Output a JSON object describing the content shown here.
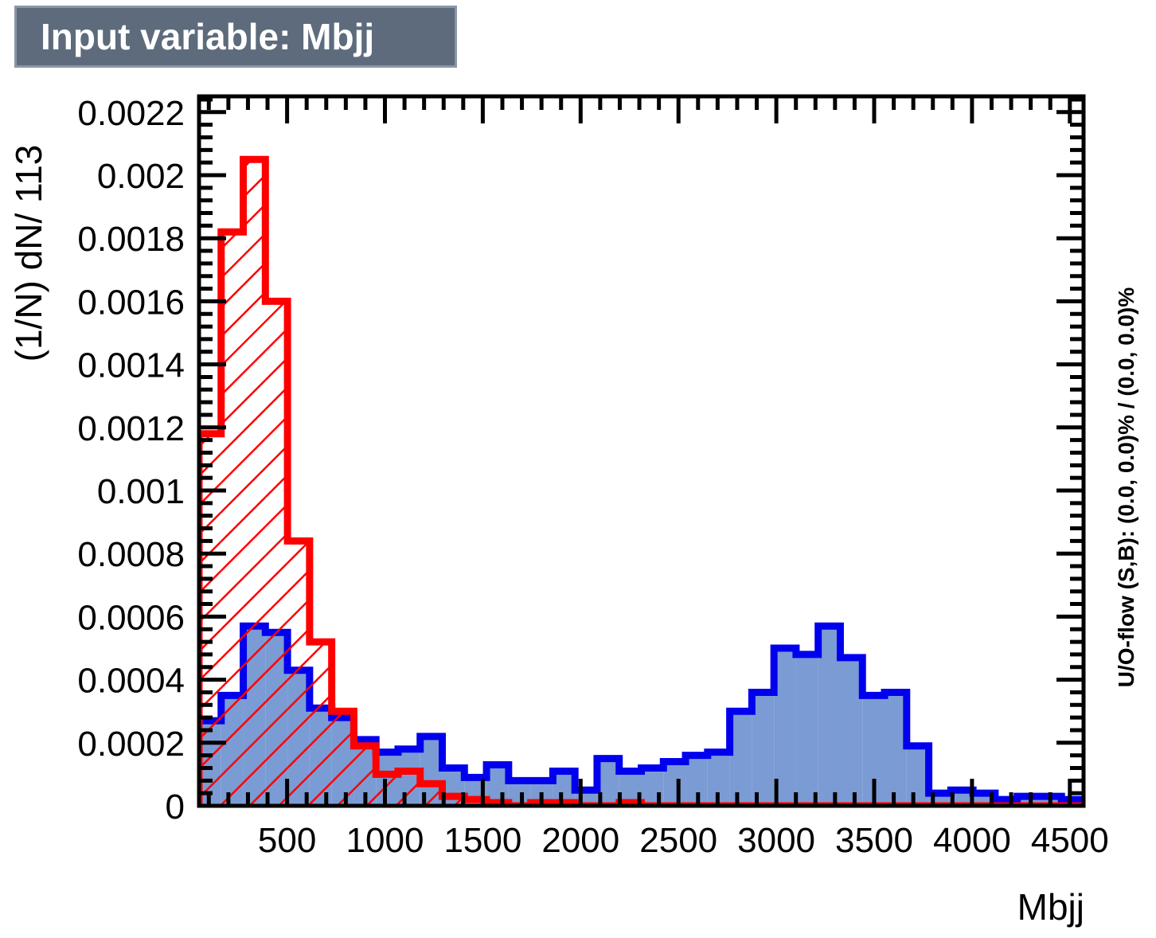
{
  "chart_data": {
    "type": "histogram",
    "title": "Input variable: Mbjj",
    "xlabel": "Mbjj",
    "ylabel": "(1/N) dN/ 113",
    "side_text": "U/O-flow (S,B): (0.0, 0.0)% / (0.0, 0.0)%",
    "xlim": [
      50,
      4570
    ],
    "ylim": [
      0,
      0.00225
    ],
    "bin_width": 113,
    "x_ticks": [
      500,
      1000,
      1500,
      2000,
      2500,
      3000,
      3500,
      4000,
      4500
    ],
    "y_ticks": [
      0,
      0.0002,
      0.0004,
      0.0006,
      0.0008,
      0.001,
      0.0012,
      0.0014,
      0.0016,
      0.0018,
      0.002,
      0.0022
    ],
    "y_tick_labels": [
      "0",
      "0.0002",
      "0.0004",
      "0.0006",
      "0.0008",
      "0.001",
      "0.0012",
      "0.0014",
      "0.0016",
      "0.0018",
      "0.002",
      "0.0022"
    ],
    "series": [
      {
        "role": "signal",
        "style": "filled",
        "fill_color": "#7b9bd4",
        "line_color": "#0000ee",
        "values": [
          0.00027,
          0.00035,
          0.00057,
          0.00055,
          0.00043,
          0.00031,
          0.00028,
          0.00021,
          0.00017,
          0.00018,
          0.00022,
          0.00012,
          9e-05,
          0.00013,
          8e-05,
          8e-05,
          0.00011,
          5e-05,
          0.00015,
          0.00011,
          0.00012,
          0.00014,
          0.00016,
          0.00017,
          0.0003,
          0.00036,
          0.0005,
          0.00048,
          0.00057,
          0.00047,
          0.00035,
          0.00036,
          0.00019,
          4e-05,
          5e-05,
          4e-05,
          2e-05,
          3e-05,
          3e-05,
          2e-05
        ]
      },
      {
        "role": "background",
        "style": "hatched",
        "fill_color": "#ff0000",
        "line_color": "#ff0000",
        "values": [
          0.00118,
          0.00182,
          0.00205,
          0.0016,
          0.00084,
          0.00052,
          0.0003,
          0.00019,
          0.0001,
          0.00011,
          7e-05,
          3e-05,
          2e-05,
          1e-05,
          0,
          1e-05,
          1e-05,
          0,
          0,
          1e-05,
          0,
          0,
          0,
          0,
          0,
          0,
          0,
          0,
          0,
          0,
          0,
          0,
          0,
          0,
          0,
          0,
          0,
          0,
          0,
          0
        ]
      }
    ]
  }
}
